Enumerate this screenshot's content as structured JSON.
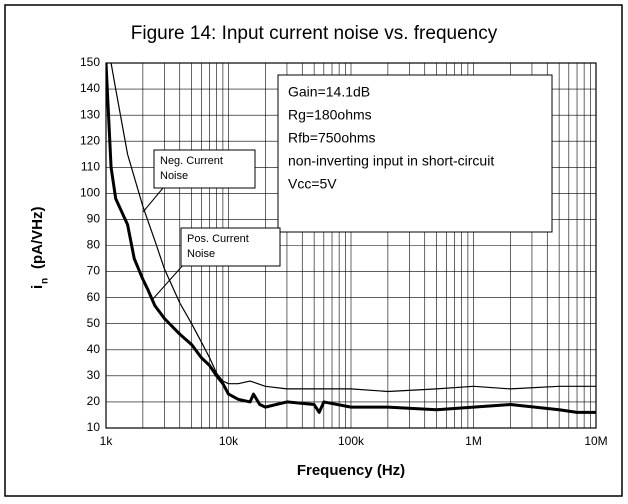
{
  "chart_data": {
    "type": "line",
    "title": "Figure 14: Input current noise vs. frequency",
    "xlabel": "Frequency (Hz)",
    "ylabel_symbol": "i",
    "ylabel_subscript": "n",
    "ylabel_unit": "(pA/VHz)",
    "xscale": "log",
    "grid": true,
    "xlim": [
      1000,
      10000000
    ],
    "xticks": [
      {
        "value": 1000,
        "label": "1k"
      },
      {
        "value": 10000,
        "label": "10k"
      },
      {
        "value": 100000,
        "label": "100k"
      },
      {
        "value": 1000000,
        "label": "1M"
      },
      {
        "value": 10000000,
        "label": "10M"
      }
    ],
    "ylim": [
      10,
      150
    ],
    "yticks": [
      10,
      20,
      30,
      40,
      50,
      60,
      70,
      80,
      90,
      100,
      110,
      120,
      130,
      140,
      150
    ],
    "annotation_lines": [
      "Gain=14.1dB",
      "Rg=180ohms",
      "Rfb=750ohms",
      "non-inverting input in short-circuit",
      "Vcc=5V"
    ],
    "series": [
      {
        "name": [
          "Neg. Current",
          "Noise"
        ],
        "color": "#000000",
        "width": 1.2,
        "x": [
          1100,
          1200,
          1500,
          2000,
          2500,
          3000,
          4000,
          5000,
          6000,
          7000,
          8000,
          9000,
          10000,
          12000,
          15000,
          20000,
          30000,
          50000,
          100000,
          200000,
          500000,
          1000000,
          2000000,
          5000000,
          10000000
        ],
        "values": [
          150,
          140,
          115,
          95,
          82,
          71,
          58,
          50,
          43,
          37,
          31,
          28,
          27,
          27,
          28,
          26,
          25,
          25,
          25,
          24,
          25,
          26,
          25,
          26,
          26
        ]
      },
      {
        "name": [
          "Pos. Current",
          "Noise"
        ],
        "color": "#000000",
        "width": 3,
        "x": [
          1000,
          1100,
          1200,
          1500,
          1700,
          2000,
          2200,
          2500,
          3000,
          4000,
          5000,
          6000,
          7000,
          8000,
          9000,
          10000,
          12000,
          15000,
          16000,
          18000,
          20000,
          30000,
          50000,
          55000,
          60000,
          100000,
          200000,
          500000,
          1000000,
          2000000,
          5000000,
          7000000,
          10000000
        ],
        "values": [
          150,
          110,
          98,
          88,
          75,
          67,
          63,
          57,
          52,
          46,
          42,
          37,
          34,
          30,
          27,
          23,
          21,
          20,
          23,
          19,
          18,
          20,
          19,
          16,
          20,
          18,
          18,
          17,
          18,
          19,
          17,
          16,
          16
        ]
      }
    ]
  }
}
